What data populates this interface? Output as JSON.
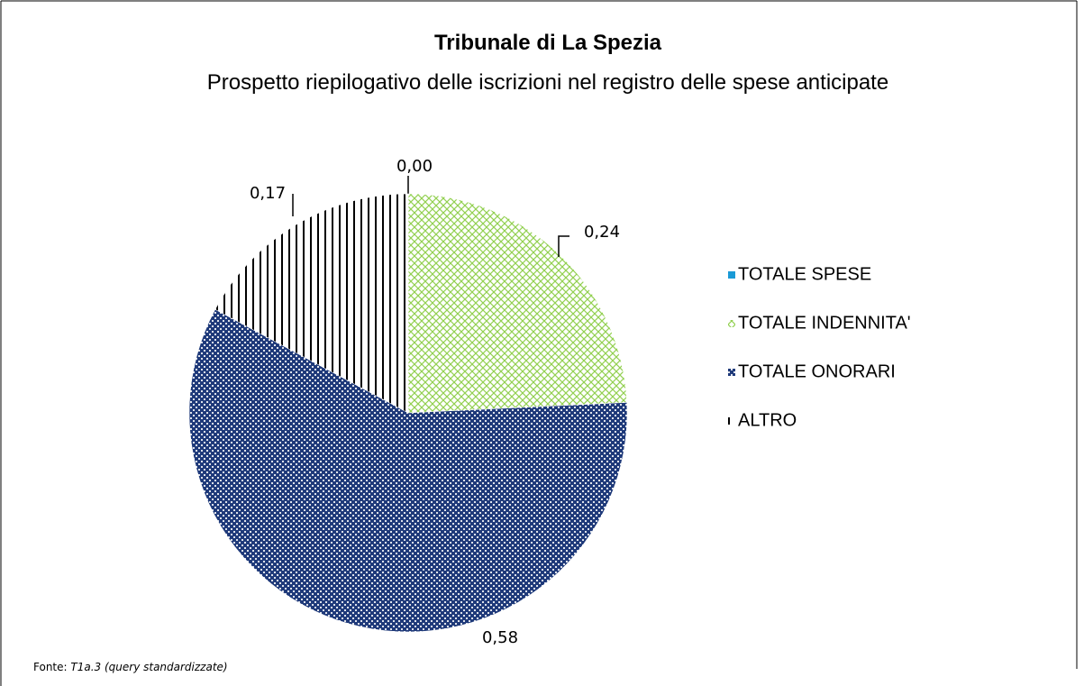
{
  "chart_data": {
    "type": "pie",
    "title": "Tribunale di La Spezia",
    "subtitle": "Prospetto riepilogativo delle iscrizioni nel registro delle spese anticipate",
    "categories": [
      "TOTALE SPESE",
      "TOTALE INDENNITA'",
      "TOTALE ONORARI",
      "ALTRO"
    ],
    "values": [
      0.0,
      0.24,
      0.58,
      0.17
    ],
    "value_labels": [
      "0,00",
      "0,24",
      "0,58",
      "0,17"
    ],
    "colors": [
      "#1a9ad6",
      "#92d050",
      "#1f3a7a",
      "#000000"
    ],
    "legend": "right",
    "source": {
      "prefix": "Fonte:",
      "text": "T1a.3 (query standardizzate)"
    }
  }
}
